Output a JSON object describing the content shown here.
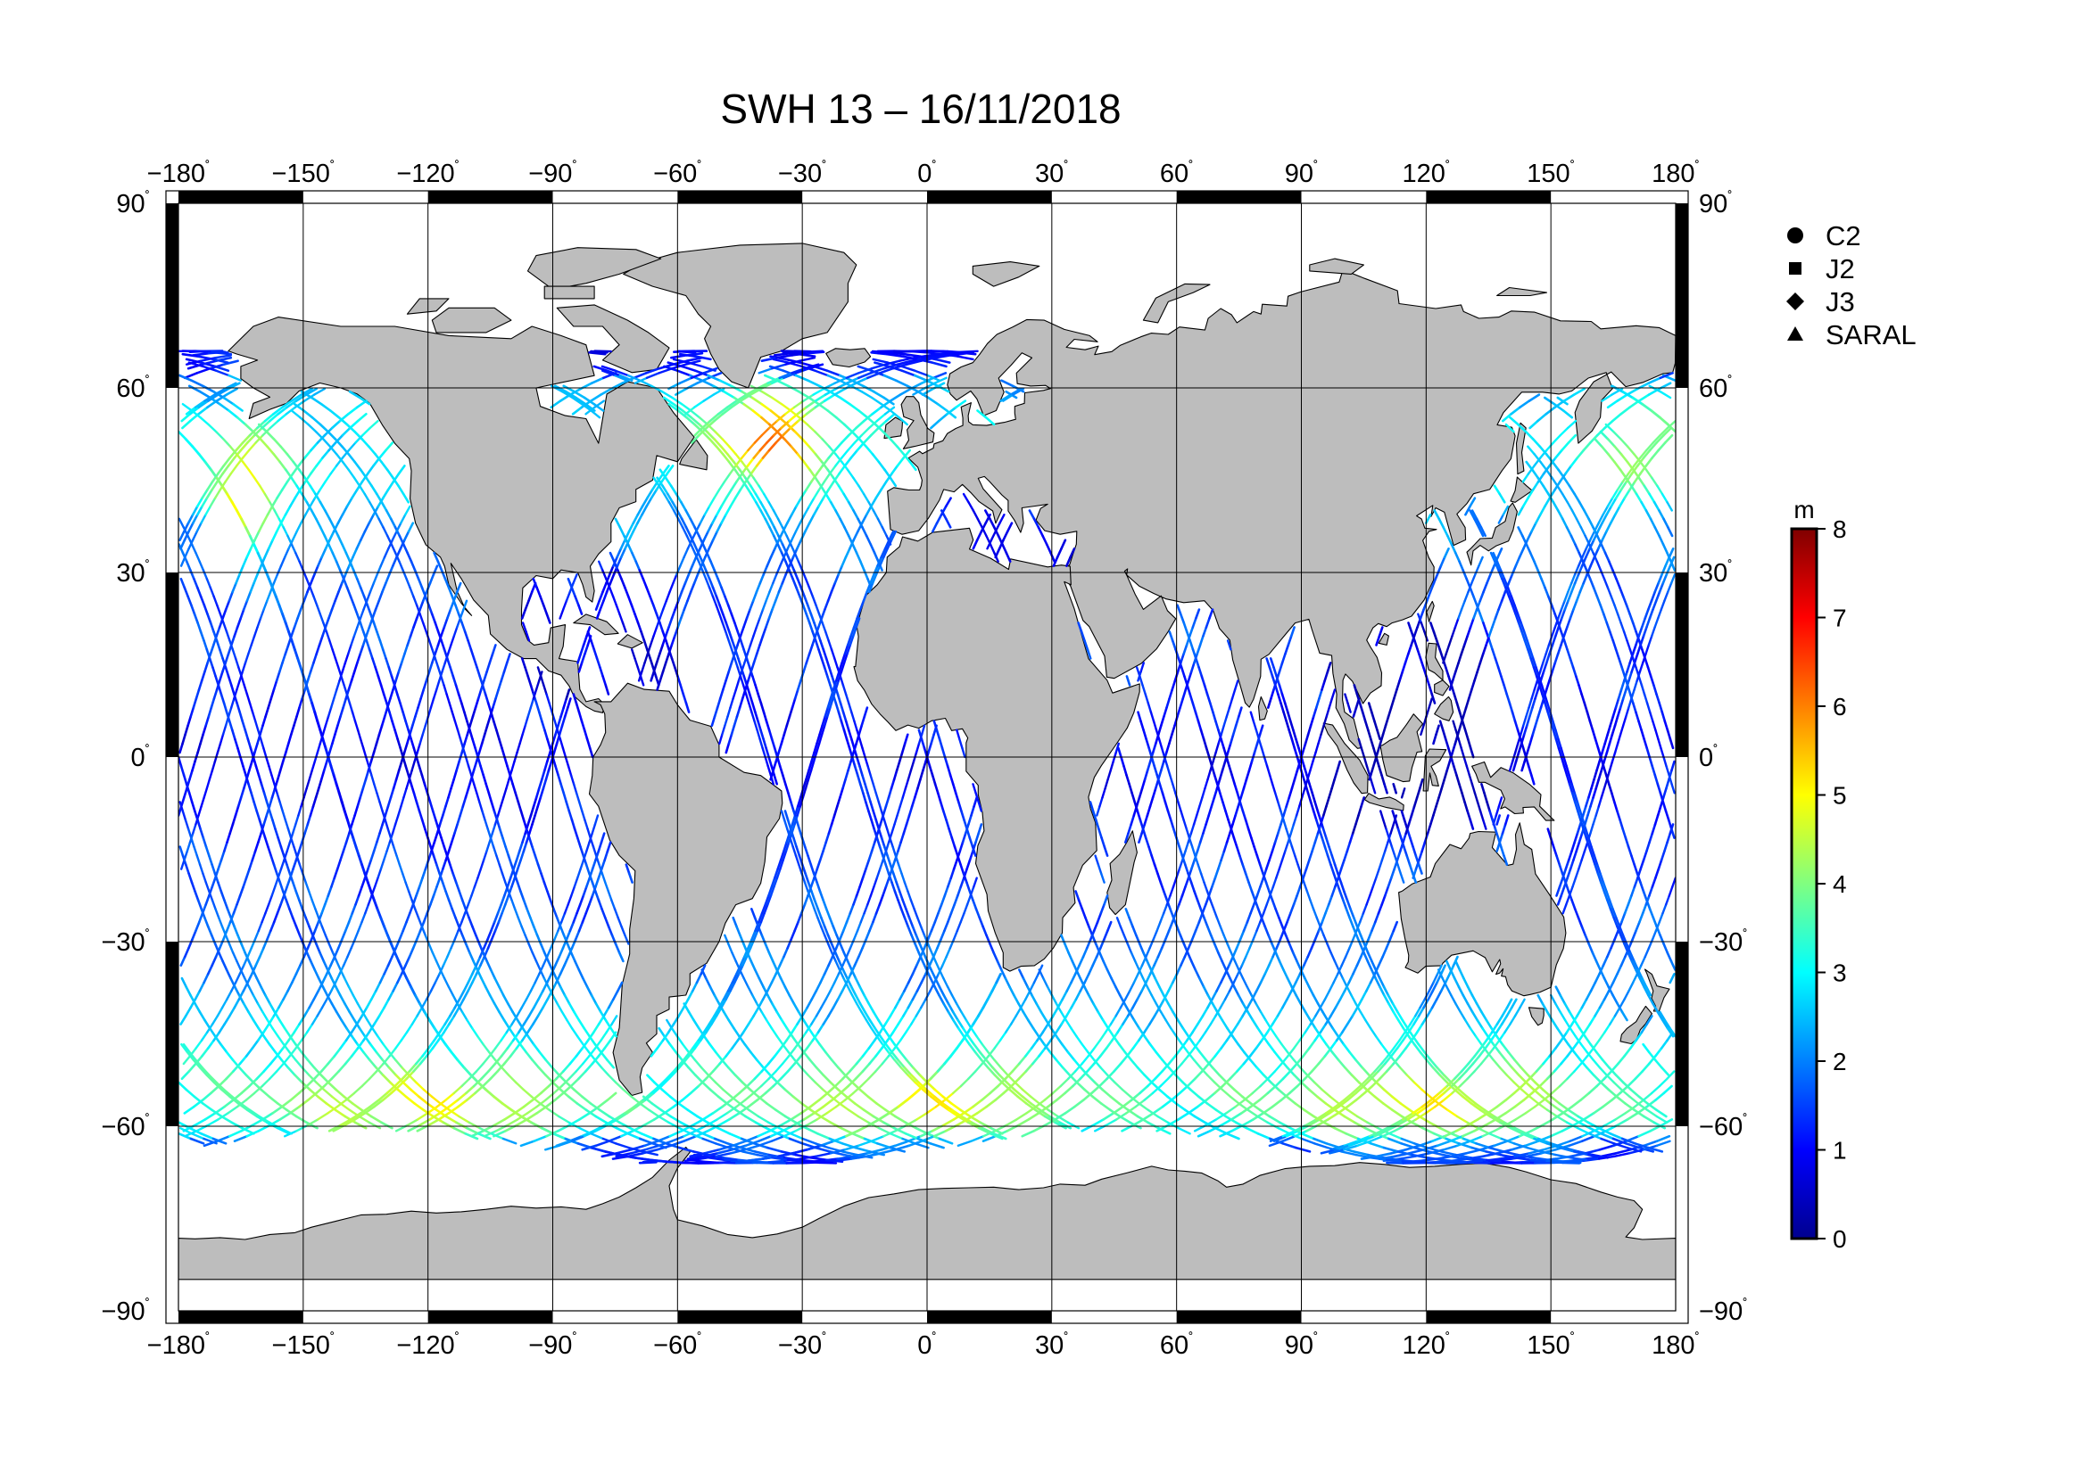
{
  "title": "SWH 13 – 16/11/2018",
  "map": {
    "projection": "equirectangular",
    "lon_range": [
      -180,
      180
    ],
    "lat_range": [
      -90,
      90
    ],
    "grid_step_lon": 30,
    "grid_step_lat": 30,
    "land_color": "#bdbdbd",
    "ocean_color": "#ffffff",
    "frame_color": "#000000",
    "grid_color": "#000000",
    "degree_mark": "˚",
    "lon_ticks": [
      {
        "value": -180,
        "label": "−180"
      },
      {
        "value": -150,
        "label": "−150"
      },
      {
        "value": -120,
        "label": "−120"
      },
      {
        "value": -90,
        "label": "−90"
      },
      {
        "value": -60,
        "label": "−60"
      },
      {
        "value": -30,
        "label": "−30"
      },
      {
        "value": 0,
        "label": "0"
      },
      {
        "value": 30,
        "label": "30"
      },
      {
        "value": 60,
        "label": "60"
      },
      {
        "value": 90,
        "label": "90"
      },
      {
        "value": 120,
        "label": "120"
      },
      {
        "value": 150,
        "label": "150"
      },
      {
        "value": 180,
        "label": "180"
      }
    ],
    "lat_ticks": [
      {
        "value": 90,
        "label": "90"
      },
      {
        "value": 60,
        "label": "60"
      },
      {
        "value": 30,
        "label": "30"
      },
      {
        "value": 0,
        "label": "0"
      },
      {
        "value": -30,
        "label": "−30"
      },
      {
        "value": -60,
        "label": "−60"
      },
      {
        "value": -90,
        "label": "−90"
      }
    ]
  },
  "legend": {
    "placement": "top-right",
    "entries": [
      {
        "label": "C2",
        "marker": "circle"
      },
      {
        "label": "J2",
        "marker": "square"
      },
      {
        "label": "J3",
        "marker": "diamond"
      },
      {
        "label": "SARAL",
        "marker": "triangle"
      }
    ]
  },
  "colorbar": {
    "unit": "m",
    "min": 0,
    "max": 8,
    "ticks": [
      {
        "value": 0,
        "label": "0"
      },
      {
        "value": 1,
        "label": "1"
      },
      {
        "value": 2,
        "label": "2"
      },
      {
        "value": 3,
        "label": "3"
      },
      {
        "value": 4,
        "label": "4"
      },
      {
        "value": 5,
        "label": "5"
      },
      {
        "value": 6,
        "label": "6"
      },
      {
        "value": 7,
        "label": "7"
      },
      {
        "value": 8,
        "label": "8"
      }
    ],
    "colormap": [
      "#00008f",
      "#0000ff",
      "#0080ff",
      "#00ffff",
      "#80ff80",
      "#ffff00",
      "#ff8000",
      "#ff0000",
      "#800000"
    ]
  },
  "tracks": {
    "inclination_deg": 66,
    "lat_limit_deg": 66,
    "sample_spacing_deg": 1.5
  }
}
